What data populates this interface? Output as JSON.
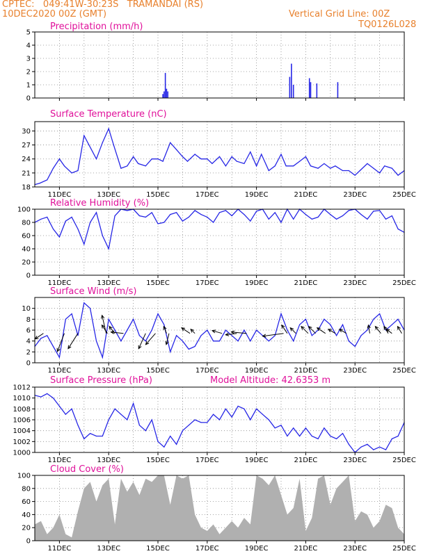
{
  "header": {
    "line1": "CPTEC:   049:41W-30:23S   TRAMANDAI (RS)",
    "line2": "10DEC2020 00Z (GMT)",
    "grid_note": "Vertical Grid Line: 00Z",
    "code": "TQ0126L028"
  },
  "colors": {
    "header": "#e8802c",
    "title": "#e0109a",
    "line": "#2626e6",
    "cloud": "#b0b0b0",
    "frame": "#000000"
  },
  "x_axis": {
    "start_day": 10,
    "end_day": 25,
    "tick_labels": [
      "11DEC",
      "13DEC",
      "15DEC",
      "17DEC",
      "19DEC",
      "21DEC",
      "23DEC",
      "25DEC"
    ],
    "tick_days": [
      11,
      13,
      15,
      17,
      19,
      21,
      23,
      25
    ]
  },
  "panels": [
    {
      "id": "precip",
      "title": "Precipitation (mm/h)",
      "extra": "",
      "type": "bar",
      "ylim": [
        0,
        5
      ],
      "yticks": [
        "0",
        "1",
        "2",
        "3",
        "4",
        "5"
      ],
      "show_xlabels": false
    },
    {
      "id": "temp",
      "title": "Surface Temperature (nC)",
      "extra": "",
      "type": "line",
      "ylim": [
        18,
        32
      ],
      "yticks": [
        "18",
        "21",
        "24",
        "27",
        "30"
      ],
      "show_xlabels": true
    },
    {
      "id": "rh",
      "title": "Relative Humidity (%)",
      "extra": "",
      "type": "line",
      "ylim": [
        0,
        100
      ],
      "yticks": [
        "0",
        "20",
        "40",
        "60",
        "80",
        "100"
      ],
      "show_xlabels": true
    },
    {
      "id": "wind",
      "title": "Surface Wind (m/s)",
      "extra": "",
      "type": "line",
      "ylim": [
        0,
        12
      ],
      "yticks": [
        "0",
        "2",
        "4",
        "6",
        "8",
        "10"
      ],
      "show_xlabels": true
    },
    {
      "id": "pres",
      "title": "Surface Pressure (hPa)",
      "extra": "Model Altitude: 42.6353 m",
      "type": "line",
      "ylim": [
        1000,
        1012
      ],
      "yticks": [
        "1000",
        "1002",
        "1004",
        "1006",
        "1008",
        "1010",
        "1012"
      ],
      "show_xlabels": true
    },
    {
      "id": "cloud",
      "title": "Cloud Cover (%)",
      "extra": "",
      "type": "area",
      "ylim": [
        0,
        100
      ],
      "yticks": [
        "0",
        "20",
        "40",
        "60",
        "80",
        "100"
      ],
      "show_xlabels": true
    }
  ],
  "chart_data": [
    {
      "type": "bar",
      "title": "Precipitation (mm/h)",
      "x": [
        15.2,
        15.25,
        15.3,
        15.35,
        15.4,
        20.35,
        20.42,
        20.5,
        21.15,
        21.2,
        21.45,
        22.3
      ],
      "values": [
        0.3,
        0.5,
        1.9,
        0.7,
        0.5,
        1.6,
        2.6,
        1.0,
        1.5,
        1.2,
        1.1,
        1.2
      ],
      "ylim": [
        0,
        5
      ]
    },
    {
      "type": "line",
      "title": "Surface Temperature (nC)",
      "ylim": [
        18,
        32
      ],
      "x": [
        10,
        10.2,
        10.5,
        10.75,
        11,
        11.2,
        11.5,
        11.75,
        12,
        12.2,
        12.5,
        12.75,
        13,
        13.2,
        13.5,
        13.75,
        14,
        14.2,
        14.5,
        14.75,
        15,
        15.2,
        15.5,
        15.75,
        16,
        16.2,
        16.5,
        16.75,
        17,
        17.2,
        17.5,
        17.75,
        18,
        18.2,
        18.5,
        18.75,
        19,
        19.2,
        19.5,
        19.75,
        20,
        20.2,
        20.5,
        20.75,
        21,
        21.2,
        21.5,
        21.75,
        22,
        22.2,
        22.5,
        22.75,
        23,
        23.2,
        23.5,
        23.75,
        24,
        24.2,
        24.5,
        24.75,
        25
      ],
      "values": [
        18.5,
        18.8,
        19.5,
        22,
        24,
        22.5,
        21,
        21.5,
        29,
        27,
        24,
        27.5,
        30.5,
        27,
        22,
        22.5,
        24.5,
        23,
        22.5,
        24,
        24,
        23.5,
        27.5,
        26,
        24.5,
        23.5,
        25,
        24,
        24,
        23,
        24.5,
        22.5,
        24.5,
        23.5,
        23,
        25.5,
        22.5,
        25,
        21.5,
        22.5,
        25,
        22.5,
        22.5,
        23.5,
        24.5,
        22.5,
        22,
        23,
        22,
        22.5,
        21.5,
        21.5,
        20.5,
        21.5,
        23,
        22,
        21,
        22.5,
        22,
        20.5,
        21.5
      ]
    },
    {
      "type": "line",
      "title": "Relative Humidity (%)",
      "ylim": [
        0,
        100
      ],
      "x": [
        10,
        10.25,
        10.5,
        10.75,
        11,
        11.25,
        11.5,
        11.75,
        12,
        12.25,
        12.5,
        12.75,
        13,
        13.25,
        13.5,
        13.75,
        14,
        14.25,
        14.5,
        14.75,
        15,
        15.25,
        15.5,
        15.75,
        16,
        16.25,
        16.5,
        16.75,
        17,
        17.25,
        17.5,
        17.75,
        18,
        18.25,
        18.5,
        18.75,
        19,
        19.25,
        19.5,
        19.75,
        20,
        20.25,
        20.5,
        20.75,
        21,
        21.25,
        21.5,
        21.75,
        22,
        22.25,
        22.5,
        22.75,
        23,
        23.25,
        23.5,
        23.75,
        24,
        24.25,
        24.5,
        24.75,
        25
      ],
      "values": [
        80,
        85,
        88,
        70,
        58,
        82,
        88,
        70,
        47,
        80,
        95,
        60,
        40,
        90,
        100,
        98,
        100,
        90,
        88,
        95,
        78,
        80,
        92,
        95,
        82,
        88,
        98,
        92,
        88,
        80,
        95,
        98,
        90,
        100,
        92,
        82,
        97,
        100,
        85,
        95,
        80,
        100,
        85,
        100,
        92,
        85,
        88,
        100,
        92,
        85,
        90,
        98,
        100,
        92,
        85,
        97,
        98,
        85,
        90,
        70,
        65
      ]
    },
    {
      "type": "line",
      "title": "Surface Wind (m/s)",
      "ylim": [
        0,
        12
      ],
      "x": [
        10,
        10.25,
        10.5,
        10.75,
        11,
        11.25,
        11.5,
        11.75,
        12,
        12.25,
        12.5,
        12.75,
        13,
        13.25,
        13.5,
        13.75,
        14,
        14.25,
        14.5,
        14.75,
        15,
        15.25,
        15.5,
        15.75,
        16,
        16.25,
        16.5,
        16.75,
        17,
        17.25,
        17.5,
        17.75,
        18,
        18.25,
        18.5,
        18.75,
        19,
        19.25,
        19.5,
        19.75,
        20,
        20.25,
        20.5,
        20.75,
        21,
        21.25,
        21.5,
        21.75,
        22,
        22.25,
        22.5,
        22.75,
        23,
        23.25,
        23.5,
        23.75,
        24,
        24.25,
        24.5,
        24.75,
        25
      ],
      "values": [
        3,
        4.5,
        5,
        3,
        1,
        8,
        9,
        5,
        11,
        10,
        4,
        1,
        8,
        6,
        4,
        6,
        8,
        5,
        4,
        6,
        9,
        7,
        2,
        5,
        4,
        2.5,
        3,
        5,
        6,
        4,
        4,
        6,
        5,
        4,
        6,
        4,
        6,
        5,
        4,
        5,
        9,
        6,
        4,
        7,
        8,
        5,
        6,
        8,
        7,
        5,
        7,
        4,
        3,
        5,
        6,
        8,
        9,
        6,
        7,
        8,
        6
      ],
      "arrows": [
        {
          "x": 10.35,
          "dx": -12,
          "dy": 8
        },
        {
          "x": 11.2,
          "dx": -10,
          "dy": 26
        },
        {
          "x": 11.75,
          "dx": -14,
          "dy": 22
        },
        {
          "x": 12.9,
          "dx": -6,
          "dy": -26
        },
        {
          "x": 12.95,
          "dx": -8,
          "dy": -12
        },
        {
          "x": 13.25,
          "dx": -8,
          "dy": -10
        },
        {
          "x": 13.6,
          "dx": -18,
          "dy": -2
        },
        {
          "x": 14.5,
          "dx": -10,
          "dy": 22
        },
        {
          "x": 14.9,
          "dx": -14,
          "dy": 16
        },
        {
          "x": 15.35,
          "dx": -4,
          "dy": -10
        },
        {
          "x": 15.45,
          "dx": -4,
          "dy": 16
        },
        {
          "x": 16.3,
          "dx": -12,
          "dy": -8
        },
        {
          "x": 16.5,
          "dx": -6,
          "dy": -6
        },
        {
          "x": 17.6,
          "dx": -14,
          "dy": -4
        },
        {
          "x": 18.2,
          "dx": -16,
          "dy": 2
        },
        {
          "x": 18.6,
          "dx": -22,
          "dy": -2
        },
        {
          "x": 20.1,
          "dx": -30,
          "dy": 4
        },
        {
          "x": 20.25,
          "dx": -8,
          "dy": -12
        },
        {
          "x": 20.6,
          "dx": -8,
          "dy": -8
        },
        {
          "x": 21.1,
          "dx": -10,
          "dy": -10
        },
        {
          "x": 21.4,
          "dx": -10,
          "dy": -10
        },
        {
          "x": 21.8,
          "dx": -12,
          "dy": -8
        },
        {
          "x": 22.2,
          "dx": -10,
          "dy": -6
        },
        {
          "x": 22.65,
          "dx": -10,
          "dy": -6
        },
        {
          "x": 23.6,
          "dx": -2,
          "dy": -12
        },
        {
          "x": 24.05,
          "dx": -8,
          "dy": -10
        },
        {
          "x": 24.35,
          "dx": -6,
          "dy": -10
        },
        {
          "x": 24.5,
          "dx": -8,
          "dy": -6
        },
        {
          "x": 24.9,
          "dx": -6,
          "dy": -10
        }
      ]
    },
    {
      "type": "line",
      "title": "Surface Pressure (hPa)",
      "ylim": [
        1000,
        1012
      ],
      "x": [
        10,
        10.25,
        10.5,
        10.75,
        11,
        11.25,
        11.5,
        11.75,
        12,
        12.25,
        12.5,
        12.75,
        13,
        13.25,
        13.5,
        13.75,
        14,
        14.25,
        14.5,
        14.75,
        15,
        15.25,
        15.5,
        15.75,
        16,
        16.25,
        16.5,
        16.75,
        17,
        17.25,
        17.5,
        17.75,
        18,
        18.25,
        18.5,
        18.75,
        19,
        19.25,
        19.5,
        19.75,
        20,
        20.25,
        20.5,
        20.75,
        21,
        21.25,
        21.5,
        21.75,
        22,
        22.25,
        22.5,
        22.75,
        23,
        23.25,
        23.5,
        23.75,
        24,
        24.25,
        24.5,
        24.75,
        25
      ],
      "values": [
        1010.5,
        1010.2,
        1010.8,
        1010,
        1008.5,
        1007,
        1008,
        1005,
        1002.5,
        1003.5,
        1003,
        1003,
        1006,
        1008,
        1007,
        1006,
        1009,
        1005,
        1004,
        1006,
        1002,
        1001,
        1003,
        1001.5,
        1004,
        1005,
        1006,
        1005.5,
        1005.5,
        1007,
        1006,
        1008,
        1006.5,
        1008.5,
        1008,
        1006,
        1008,
        1007,
        1006,
        1004.5,
        1005,
        1003,
        1004.5,
        1003,
        1004.5,
        1003,
        1002.5,
        1004.5,
        1003,
        1002.5,
        1003.5,
        1001.5,
        1000,
        1001,
        1001.5,
        1000.5,
        1001,
        1000.5,
        1002.5,
        1003,
        1005.5
      ]
    },
    {
      "type": "area",
      "title": "Cloud Cover (%)",
      "ylim": [
        0,
        100
      ],
      "x": [
        10,
        10.25,
        10.5,
        10.75,
        11,
        11.25,
        11.5,
        11.75,
        12,
        12.25,
        12.5,
        12.75,
        13,
        13.25,
        13.5,
        13.75,
        14,
        14.25,
        14.5,
        14.75,
        15,
        15.25,
        15.5,
        15.75,
        16,
        16.25,
        16.5,
        16.75,
        17,
        17.25,
        17.5,
        17.75,
        18,
        18.25,
        18.5,
        18.75,
        19,
        19.25,
        19.5,
        19.75,
        20,
        20.25,
        20.5,
        20.75,
        21,
        21.25,
        21.5,
        21.75,
        22,
        22.25,
        22.5,
        22.75,
        23,
        23.25,
        23.5,
        23.75,
        24,
        24.25,
        24.5,
        24.75,
        25
      ],
      "values": [
        25,
        30,
        10,
        20,
        40,
        10,
        5,
        45,
        80,
        90,
        60,
        85,
        95,
        25,
        95,
        75,
        90,
        70,
        95,
        90,
        100,
        100,
        55,
        100,
        95,
        100,
        40,
        20,
        15,
        25,
        10,
        20,
        30,
        20,
        35,
        25,
        100,
        95,
        85,
        100,
        70,
        40,
        50,
        95,
        15,
        35,
        95,
        100,
        55,
        80,
        90,
        100,
        30,
        45,
        40,
        20,
        30,
        55,
        50,
        20,
        10
      ]
    }
  ]
}
